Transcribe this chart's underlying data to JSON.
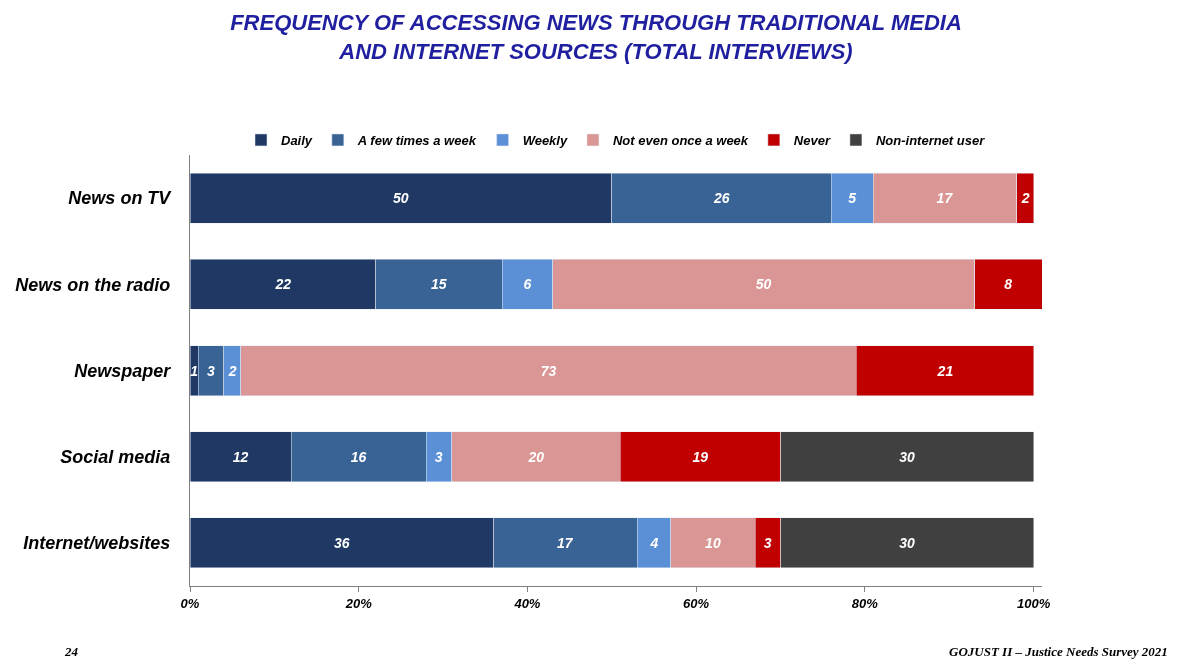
{
  "chart_data": {
    "type": "bar",
    "orientation": "horizontal",
    "stacked": true,
    "title": "FREQUENCY OF ACCESSING NEWS THROUGH TRADITIONAL MEDIA\nAND INTERNET SOURCES (TOTAL INTERVIEWS)",
    "categories": [
      "News on TV",
      "News on the radio",
      "Newspaper",
      "Social media",
      "Internet/websites"
    ],
    "series": [
      {
        "name": "Daily",
        "color": "#1f3864",
        "values": [
          50,
          22,
          1,
          12,
          36
        ]
      },
      {
        "name": "A few times a week",
        "color": "#3a6395",
        "values": [
          26,
          15,
          3,
          16,
          17
        ]
      },
      {
        "name": "Weekly",
        "color": "#5b8fd6",
        "values": [
          5,
          6,
          2,
          3,
          4
        ]
      },
      {
        "name": "Not even once a week",
        "color": "#d99694",
        "values": [
          17,
          50,
          73,
          20,
          10
        ]
      },
      {
        "name": "Never",
        "color": "#c00000",
        "values": [
          2,
          8,
          21,
          19,
          3
        ]
      },
      {
        "name": "Non-internet user",
        "color": "#404040",
        "values": [
          null,
          null,
          null,
          30,
          30
        ]
      }
    ],
    "xlim": [
      0,
      101
    ],
    "xticks": [
      {
        "value": 0,
        "label": "0%"
      },
      {
        "value": 20,
        "label": "20%"
      },
      {
        "value": 40,
        "label": "40%"
      },
      {
        "value": 60,
        "label": "60%"
      },
      {
        "value": 80,
        "label": "80%"
      },
      {
        "value": 100,
        "label": "100%"
      }
    ],
    "data_labels": true,
    "legend": "top",
    "annotations": [
      "24",
      "GOJUST II – Justice Needs Survey 2021"
    ]
  }
}
